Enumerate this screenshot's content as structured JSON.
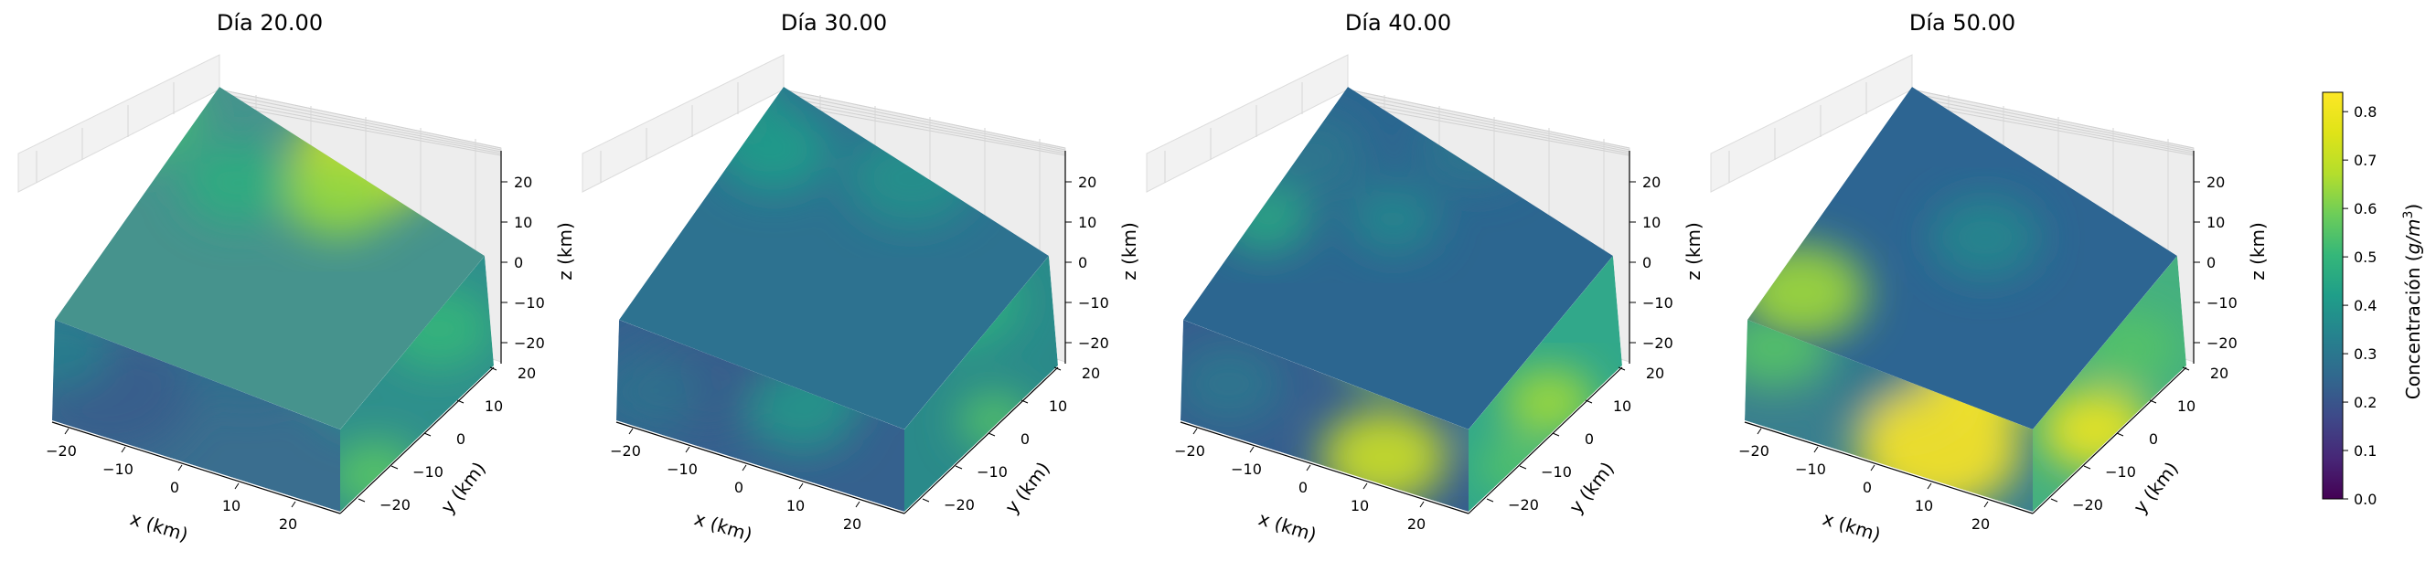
{
  "chart_data": {
    "type": "3d-volume",
    "colormap": "viridis",
    "panels": [
      {
        "title": "Día 20.00",
        "xlabel": "x (km)",
        "ylabel": "y (km)",
        "zlabel": "z (km)",
        "xticks": [
          "−20",
          "−10",
          "0",
          "10",
          "20"
        ],
        "yticks": [
          "−20",
          "−10",
          "0",
          "10",
          "20"
        ],
        "zticks": [
          "−20",
          "−10",
          "0",
          "10",
          "20"
        ],
        "xlim": [
          -25,
          25
        ],
        "ylim": [
          -25,
          25
        ],
        "zlim": [
          -25,
          25
        ]
      },
      {
        "title": "Día 30.00",
        "xlabel": "x (km)",
        "ylabel": "y (km)",
        "zlabel": "z (km)",
        "xticks": [
          "−20",
          "−10",
          "0",
          "10",
          "20"
        ],
        "yticks": [
          "−20",
          "−10",
          "0",
          "10",
          "20"
        ],
        "zticks": [
          "−20",
          "−10",
          "0",
          "10",
          "20"
        ],
        "xlim": [
          -25,
          25
        ],
        "ylim": [
          -25,
          25
        ],
        "zlim": [
          -25,
          25
        ]
      },
      {
        "title": "Día 40.00",
        "xlabel": "x (km)",
        "ylabel": "y (km)",
        "zlabel": "z (km)",
        "xticks": [
          "−20",
          "−10",
          "0",
          "10",
          "20"
        ],
        "yticks": [
          "−20",
          "−10",
          "0",
          "10",
          "20"
        ],
        "zticks": [
          "−20",
          "−10",
          "0",
          "10",
          "20"
        ],
        "xlim": [
          -25,
          25
        ],
        "ylim": [
          -25,
          25
        ],
        "zlim": [
          -25,
          25
        ]
      },
      {
        "title": "Día 50.00",
        "xlabel": "x (km)",
        "ylabel": "y (km)",
        "zlabel": "z (km)",
        "xticks": [
          "−20",
          "−10",
          "0",
          "10",
          "20"
        ],
        "yticks": [
          "−20",
          "−10",
          "0",
          "10",
          "20"
        ],
        "zticks": [
          "−20",
          "−10",
          "0",
          "10",
          "20"
        ],
        "xlim": [
          -25,
          25
        ],
        "ylim": [
          -25,
          25
        ],
        "zlim": [
          -25,
          25
        ]
      }
    ],
    "colorbar": {
      "label_prefix": "Concentración (",
      "label_math": "g/m",
      "label_sup": "3",
      "label_suffix": ")",
      "ticks": [
        "0.0",
        "0.1",
        "0.2",
        "0.3",
        "0.4",
        "0.5",
        "0.6",
        "0.7",
        "0.8"
      ],
      "range": [
        0,
        0.84
      ]
    },
    "colors": {
      "viridis_low": "#440154",
      "viridis_mid": "#21918c",
      "viridis_high": "#fde725"
    }
  }
}
